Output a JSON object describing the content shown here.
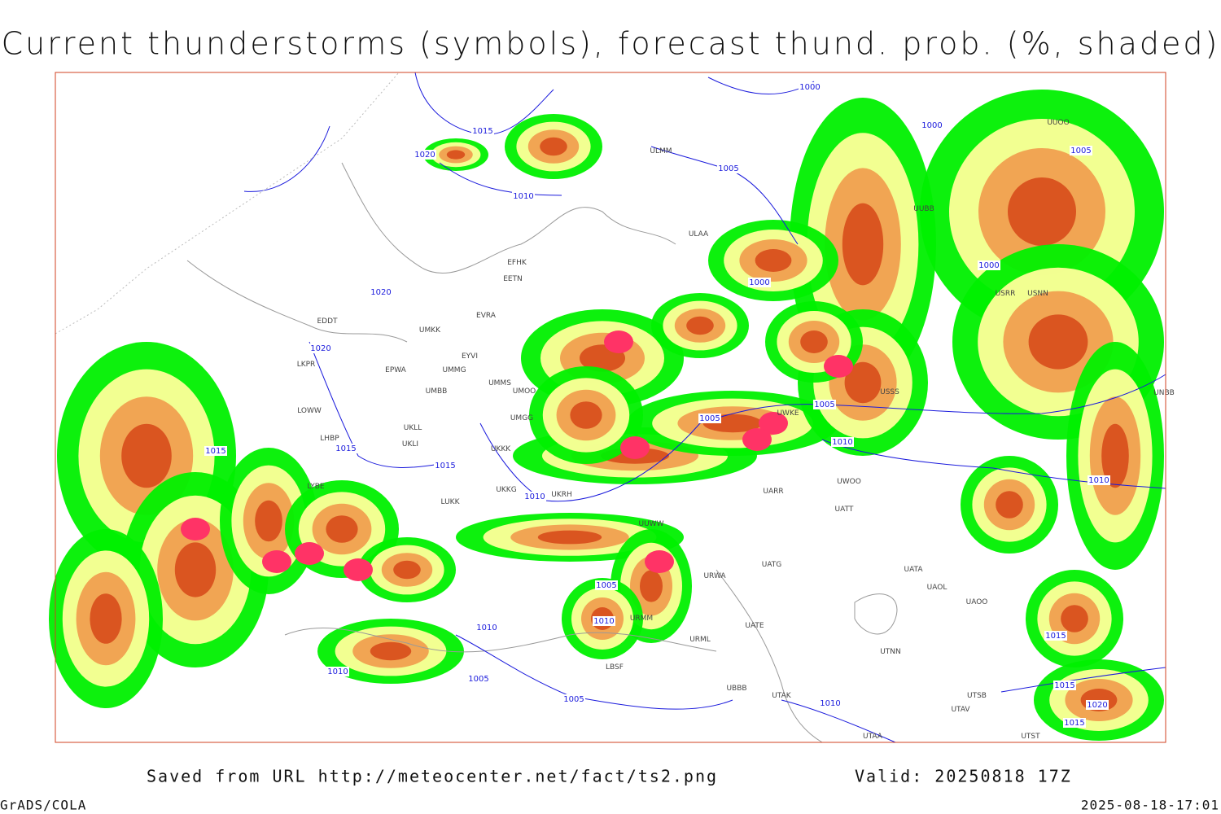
{
  "header": {
    "title": "Current thunderstorms (symbols), forecast thund. prob. (%, shaded)"
  },
  "footer": {
    "saved_from": "Saved from URL http://meteocenter.net/fact/ts2.png",
    "valid": "Valid: 20250818 17Z",
    "software": "GrADS/COLA",
    "timestamp": "2025-08-18-17:01"
  },
  "isobar_labels": [
    "1000",
    "1015",
    "1020",
    "1010",
    "1020",
    "1020",
    "1015",
    "1015",
    "1015",
    "1010",
    "1005",
    "1000",
    "1005",
    "1000",
    "1000",
    "1005",
    "1005",
    "1010",
    "1010",
    "1005",
    "1010",
    "1010",
    "1005",
    "1005",
    "1010",
    "1010",
    "1015",
    "1015",
    "1020",
    "1015"
  ],
  "station_labels": [
    "ULMM",
    "ULAA",
    "EFHK",
    "EETN",
    "EVRA",
    "UMKK",
    "EDDT",
    "EPWA",
    "EYVI",
    "UMMG",
    "LKPR",
    "UMBB",
    "UMMS",
    "UMOO",
    "LOWW",
    "LHBP",
    "UKLL",
    "UKLI",
    "UMGG",
    "UKKK",
    "LYBE",
    "LUKK",
    "UKKG",
    "UKRH",
    "UUWW",
    "UWKE",
    "UARR",
    "UWOO",
    "UATT",
    "UATG",
    "UATA",
    "UAOL",
    "UAOO",
    "URWA",
    "UATE",
    "UTNN",
    "UTAK",
    "UTSB",
    "UTAV",
    "UTAA",
    "UTST",
    "URML",
    "UBBB",
    "LBSF",
    "URMM",
    "USRR",
    "USSS",
    "USNN",
    "UNBB",
    "UUOO",
    "UUBB"
  ]
}
